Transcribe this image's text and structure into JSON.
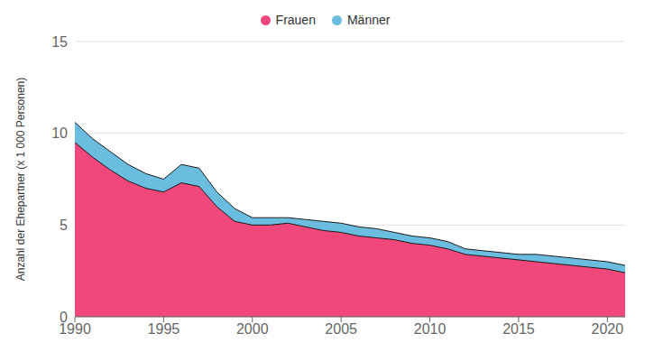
{
  "chart_data": {
    "type": "area",
    "x": [
      1990,
      1991,
      1992,
      1993,
      1994,
      1995,
      1996,
      1997,
      1998,
      1999,
      2000,
      2001,
      2002,
      2003,
      2004,
      2005,
      2006,
      2007,
      2008,
      2009,
      2010,
      2011,
      2012,
      2013,
      2014,
      2015,
      2016,
      2017,
      2018,
      2019,
      2020,
      2021
    ],
    "series": [
      {
        "name": "Frauen",
        "color": "#F0487A",
        "values": [
          9.5,
          8.7,
          8.0,
          7.4,
          7.0,
          6.8,
          7.3,
          7.1,
          6.0,
          5.2,
          5.0,
          5.0,
          5.1,
          4.9,
          4.7,
          4.6,
          4.4,
          4.3,
          4.2,
          4.0,
          3.9,
          3.7,
          3.4,
          3.3,
          3.2,
          3.1,
          3.0,
          2.9,
          2.8,
          2.7,
          2.6,
          2.4
        ]
      },
      {
        "name": "Männer",
        "color": "#6BBDE0",
        "values": [
          10.6,
          9.7,
          9.0,
          8.3,
          7.8,
          7.5,
          8.3,
          8.1,
          6.8,
          5.9,
          5.4,
          5.4,
          5.4,
          5.3,
          5.2,
          5.1,
          4.9,
          4.8,
          4.6,
          4.4,
          4.3,
          4.1,
          3.7,
          3.6,
          3.5,
          3.4,
          3.4,
          3.3,
          3.2,
          3.1,
          3.0,
          2.8
        ]
      }
    ],
    "ylabel": "Anzahl der Ehepartner (x 1 000 Personen)",
    "xlim": [
      1990,
      2021
    ],
    "xticks": [
      1990,
      1995,
      2000,
      2005,
      2010,
      2015,
      2020
    ],
    "ylim": [
      0,
      15
    ],
    "yticks": [
      0,
      5,
      10,
      15
    ],
    "grid": true,
    "legend": "top"
  }
}
